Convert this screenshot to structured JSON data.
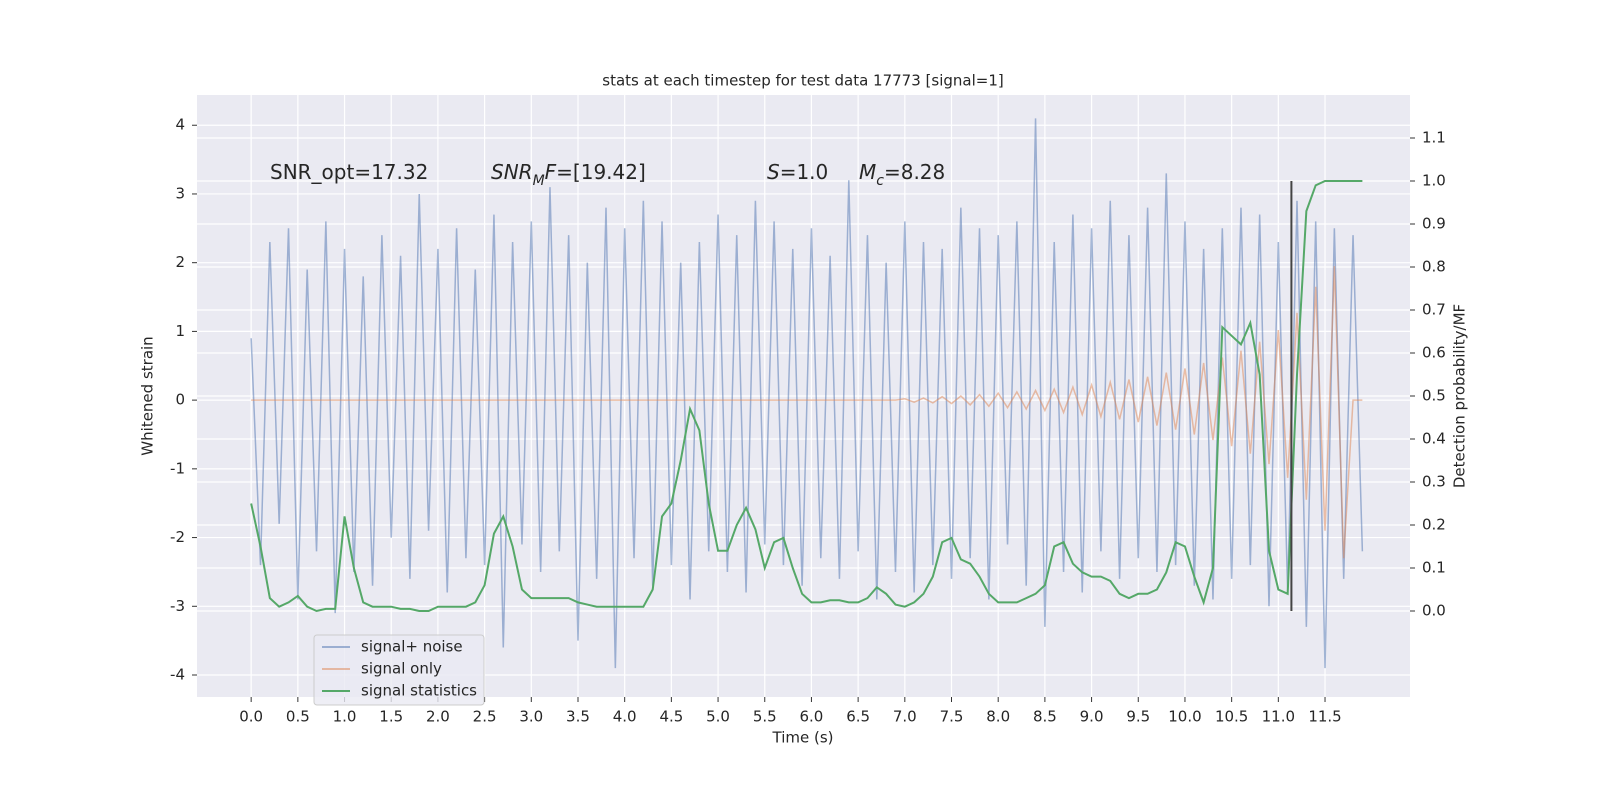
{
  "chart_data": {
    "type": "line",
    "title": "stats at each timestep for test data 17773 [signal=1]",
    "x_label": "Time (s)",
    "y_label": "Whitened strain",
    "y2_label": "Detection probability/MF",
    "annotations": [
      [
        {
          "text": "SNR_opt=17.32"
        }
      ],
      [
        {
          "text": "SNR",
          "italic": true
        },
        {
          "text": "M",
          "italic": true,
          "sub": true
        },
        {
          "text": "F",
          "italic": true
        },
        {
          "text": "=[19.42]"
        }
      ],
      [
        {
          "text": "S",
          "italic": true
        },
        {
          "text": "=1.0"
        }
      ],
      [
        {
          "text": "M",
          "italic": true
        },
        {
          "text": "c",
          "italic": true,
          "sub": true
        },
        {
          "text": "=8.28"
        }
      ]
    ],
    "x": [
      0,
      0.1,
      0.2,
      0.3,
      0.4,
      0.5,
      0.6,
      0.7,
      0.8,
      0.9,
      1,
      1.1,
      1.2,
      1.3,
      1.4,
      1.5,
      1.6,
      1.7,
      1.8,
      1.9,
      2,
      2.1,
      2.2,
      2.3,
      2.4,
      2.5,
      2.6,
      2.7,
      2.8,
      2.9,
      3,
      3.1,
      3.2,
      3.3,
      3.4,
      3.5,
      3.6,
      3.7,
      3.8,
      3.9,
      4,
      4.1,
      4.2,
      4.3,
      4.4,
      4.5,
      4.6,
      4.7,
      4.8,
      4.9,
      5,
      5.1,
      5.2,
      5.3,
      5.4,
      5.5,
      5.6,
      5.7,
      5.8,
      5.9,
      6,
      6.1,
      6.2,
      6.3,
      6.4,
      6.5,
      6.6,
      6.7,
      6.8,
      6.9,
      7,
      7.1,
      7.2,
      7.3,
      7.4,
      7.5,
      7.6,
      7.7,
      7.8,
      7.9,
      8,
      8.1,
      8.2,
      8.3,
      8.4,
      8.5,
      8.6,
      8.7,
      8.8,
      8.9,
      9,
      9.1,
      9.2,
      9.3,
      9.4,
      9.5,
      9.6,
      9.7,
      9.8,
      9.9,
      10,
      10.1,
      10.2,
      10.3,
      10.4,
      10.5,
      10.6,
      10.7,
      10.8,
      10.9,
      11,
      11.1,
      11.2,
      11.3,
      11.4,
      11.5,
      11.6,
      11.7,
      11.8,
      11.9
    ],
    "series": [
      {
        "name": "signal+ noise",
        "color": "#4c72b0",
        "opacity": 0.5,
        "values": [
          0.9,
          -2.4,
          2.3,
          -1.8,
          2.5,
          -2.9,
          1.9,
          -2.2,
          2.6,
          -3.1,
          2.2,
          -2.5,
          1.8,
          -2.7,
          2.4,
          -2.0,
          2.1,
          -2.6,
          3.0,
          -1.9,
          2.2,
          -2.8,
          2.5,
          -2.3,
          1.9,
          -2.4,
          2.7,
          -3.6,
          2.3,
          -2.1,
          2.6,
          -2.5,
          3.1,
          -2.2,
          2.4,
          -3.5,
          2.0,
          -2.6,
          2.8,
          -3.9,
          2.5,
          -2.3,
          2.9,
          -2.7,
          2.6,
          -2.4,
          2.0,
          -2.9,
          2.3,
          -2.2,
          2.7,
          -2.5,
          2.4,
          -2.8,
          2.9,
          -2.1,
          2.6,
          -2.4,
          2.2,
          -2.7,
          2.5,
          -2.3,
          2.1,
          -2.6,
          3.2,
          -2.2,
          2.4,
          -2.9,
          2.0,
          -2.5,
          2.6,
          -2.8,
          2.3,
          -2.4,
          2.2,
          -2.6,
          2.8,
          -2.3,
          2.5,
          -2.9,
          2.4,
          -2.1,
          2.6,
          -2.7,
          4.1,
          -3.3,
          2.3,
          -2.5,
          2.7,
          -2.8,
          2.5,
          -2.2,
          2.9,
          -2.6,
          2.4,
          -2.3,
          2.8,
          -2.5,
          3.3,
          -2.4,
          2.6,
          -2.7,
          2.2,
          -2.9,
          2.5,
          -2.6,
          2.8,
          -2.4,
          2.7,
          -3.0,
          2.3,
          -2.8,
          2.9,
          -3.3,
          2.6,
          -3.9,
          2.5,
          -2.6,
          2.4,
          -2.2
        ]
      },
      {
        "name": "signal only",
        "color": "#dd8452",
        "opacity": 0.5,
        "values": [
          0,
          0,
          0,
          0,
          0,
          0,
          0,
          0,
          0,
          0,
          0,
          0,
          0,
          0,
          0,
          0,
          0,
          0,
          0,
          0,
          0,
          0,
          0,
          0,
          0,
          0,
          0,
          0,
          0,
          0,
          0,
          0,
          0,
          0,
          0,
          0,
          0,
          0,
          0,
          0,
          0,
          0,
          0,
          0,
          0,
          0,
          0,
          0,
          0,
          0,
          0,
          0,
          0,
          0,
          0,
          0,
          0,
          0,
          0,
          0,
          0,
          0,
          0,
          0,
          0,
          0,
          0,
          0,
          0,
          0,
          0.02,
          -0.03,
          0.03,
          -0.04,
          0.05,
          -0.05,
          0.06,
          -0.07,
          0.08,
          -0.09,
          0.1,
          -0.11,
          0.12,
          -0.13,
          0.14,
          -0.15,
          0.16,
          -0.18,
          0.19,
          -0.21,
          0.22,
          -0.24,
          0.26,
          -0.28,
          0.3,
          -0.32,
          0.34,
          -0.37,
          0.4,
          -0.43,
          0.46,
          -0.5,
          0.54,
          -0.58,
          0.62,
          -0.67,
          0.72,
          -0.78,
          0.85,
          -0.93,
          1.02,
          -1.13,
          1.27,
          -1.45,
          1.65,
          -1.9,
          1.95,
          -2.3,
          0,
          0
        ]
      },
      {
        "name": "signal statistics",
        "color": "#55a868",
        "opacity": 1,
        "axis": "y2",
        "values": [
          0.25,
          0.15,
          0.03,
          0.01,
          0.02,
          0.035,
          0.01,
          0.0,
          0.005,
          0.005,
          0.22,
          0.1,
          0.02,
          0.01,
          0.01,
          0.01,
          0.005,
          0.005,
          0.0,
          0.0,
          0.01,
          0.01,
          0.01,
          0.01,
          0.02,
          0.06,
          0.18,
          0.22,
          0.15,
          0.05,
          0.03,
          0.03,
          0.03,
          0.03,
          0.03,
          0.02,
          0.015,
          0.01,
          0.01,
          0.01,
          0.01,
          0.01,
          0.01,
          0.05,
          0.22,
          0.25,
          0.35,
          0.47,
          0.42,
          0.25,
          0.14,
          0.14,
          0.2,
          0.24,
          0.19,
          0.1,
          0.16,
          0.17,
          0.1,
          0.04,
          0.02,
          0.02,
          0.025,
          0.025,
          0.02,
          0.02,
          0.03,
          0.055,
          0.04,
          0.015,
          0.01,
          0.02,
          0.04,
          0.08,
          0.16,
          0.17,
          0.12,
          0.11,
          0.08,
          0.04,
          0.02,
          0.02,
          0.02,
          0.03,
          0.04,
          0.06,
          0.15,
          0.16,
          0.11,
          0.09,
          0.08,
          0.08,
          0.07,
          0.04,
          0.03,
          0.04,
          0.04,
          0.05,
          0.09,
          0.16,
          0.15,
          0.08,
          0.02,
          0.1,
          0.66,
          0.64,
          0.62,
          0.67,
          0.55,
          0.14,
          0.05,
          0.04,
          0.55,
          0.93,
          0.99,
          1.0,
          1.0,
          1.0,
          1.0,
          1.0
        ]
      }
    ],
    "vline": {
      "x": 11.14,
      "y2": [
        0.0,
        1.0
      ],
      "color": "#444444"
    },
    "xlim": [
      -0.58,
      12.41
    ],
    "ylim": [
      -4.32,
      4.44
    ],
    "y2lim": [
      -0.2,
      1.2
    ],
    "xticks": [
      {
        "value": 0,
        "label": "0.0"
      },
      {
        "value": 0.5,
        "label": "0.5"
      },
      {
        "value": 1,
        "label": "1.0"
      },
      {
        "value": 1.5,
        "label": "1.5"
      },
      {
        "value": 2,
        "label": "2.0"
      },
      {
        "value": 2.5,
        "label": "2.5"
      },
      {
        "value": 3,
        "label": "3.0"
      },
      {
        "value": 3.5,
        "label": "3.5"
      },
      {
        "value": 4,
        "label": "4.0"
      },
      {
        "value": 4.5,
        "label": "4.5"
      },
      {
        "value": 5,
        "label": "5.0"
      },
      {
        "value": 5.5,
        "label": "5.5"
      },
      {
        "value": 6,
        "label": "6.0"
      },
      {
        "value": 6.5,
        "label": "6.5"
      },
      {
        "value": 7,
        "label": "7.0"
      },
      {
        "value": 7.5,
        "label": "7.5"
      },
      {
        "value": 8,
        "label": "8.0"
      },
      {
        "value": 8.5,
        "label": "8.5"
      },
      {
        "value": 9,
        "label": "9.0"
      },
      {
        "value": 9.5,
        "label": "9.5"
      },
      {
        "value": 10,
        "label": "10.0"
      },
      {
        "value": 10.5,
        "label": "10.5"
      },
      {
        "value": 11,
        "label": "11.0"
      },
      {
        "value": 11.5,
        "label": "11.5"
      }
    ],
    "yticks": [
      -4,
      -3,
      -2,
      -1,
      0,
      1,
      2,
      3,
      4
    ],
    "y2ticks": [
      {
        "value": 0,
        "label": "0.0"
      },
      {
        "value": 0.1,
        "label": "0.1"
      },
      {
        "value": 0.2,
        "label": "0.2"
      },
      {
        "value": 0.3,
        "label": "0.3"
      },
      {
        "value": 0.4,
        "label": "0.4"
      },
      {
        "value": 0.5,
        "label": "0.5"
      },
      {
        "value": 0.6,
        "label": "0.6"
      },
      {
        "value": 0.7,
        "label": "0.7"
      },
      {
        "value": 0.8,
        "label": "0.8"
      },
      {
        "value": 0.9,
        "label": "0.9"
      },
      {
        "value": 1,
        "label": "1.0"
      },
      {
        "value": 1.1,
        "label": "1.1"
      }
    ],
    "grid": true,
    "legend": "lower left"
  }
}
